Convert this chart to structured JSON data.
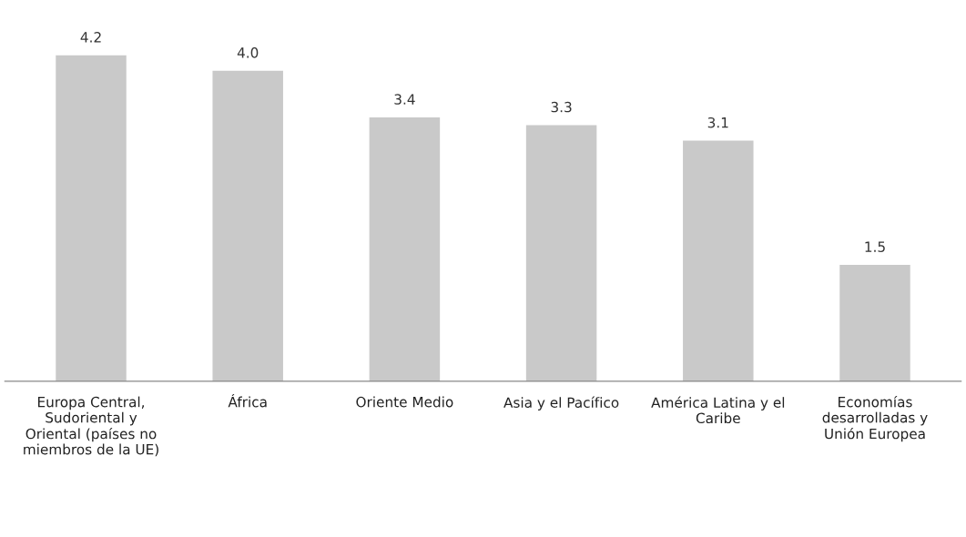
{
  "chart_data": {
    "type": "bar",
    "categories": [
      "Europa Central, Sudoriental y Oriental (países no miembros de la UE)",
      "África",
      "Oriente Medio",
      "Asia y el Pacífico",
      "América Latina y el Caribe",
      "Economías desarrolladas y Unión Europea"
    ],
    "values": [
      4.2,
      4.0,
      3.4,
      3.3,
      3.1,
      1.5
    ],
    "color": "#c9c9c9",
    "value_labels": [
      "4.2",
      "4.0",
      "3.4",
      "3.3",
      "3.1",
      "1.5"
    ],
    "grid": false,
    "legend": false
  }
}
